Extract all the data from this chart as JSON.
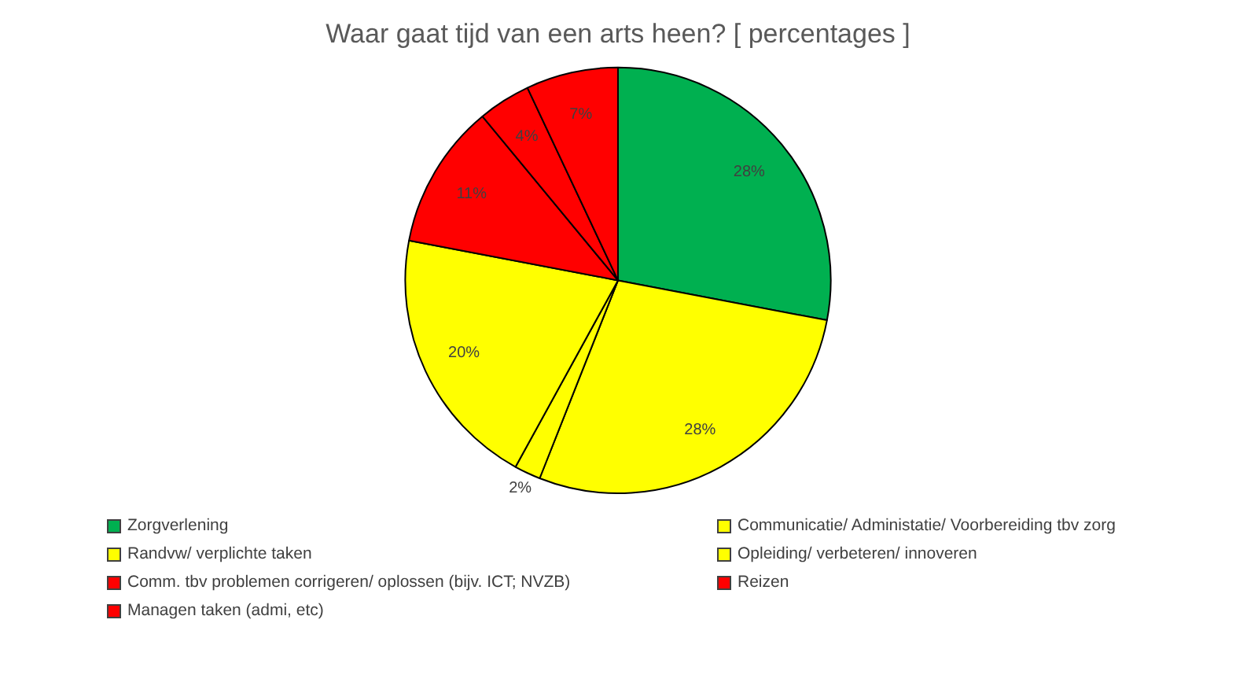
{
  "chart_data": {
    "type": "pie",
    "title": "Waar gaat tijd van een arts heen? [ percentages ]",
    "categories": [
      "Zorgverlening",
      "Communicatie/ Administatie/ Voorbereiding tbv zorg",
      "Randvw/ verplichte taken",
      "Opleiding/ verbeteren/ innoveren",
      "Comm. tbv problemen corrigeren/ oplossen (bijv. ICT; NVZB)",
      "Reizen",
      "Managen taken (admi, etc)"
    ],
    "values": [
      28,
      28,
      2,
      20,
      11,
      4,
      7
    ],
    "colors": [
      "#00b050",
      "#ffff00",
      "#ffff00",
      "#ffff00",
      "#ff0000",
      "#ff0000",
      "#ff0000"
    ],
    "value_labels": [
      "28%",
      "28%",
      "2%",
      "20%",
      "11%",
      "4%",
      "7%"
    ],
    "legend": "bottom"
  }
}
